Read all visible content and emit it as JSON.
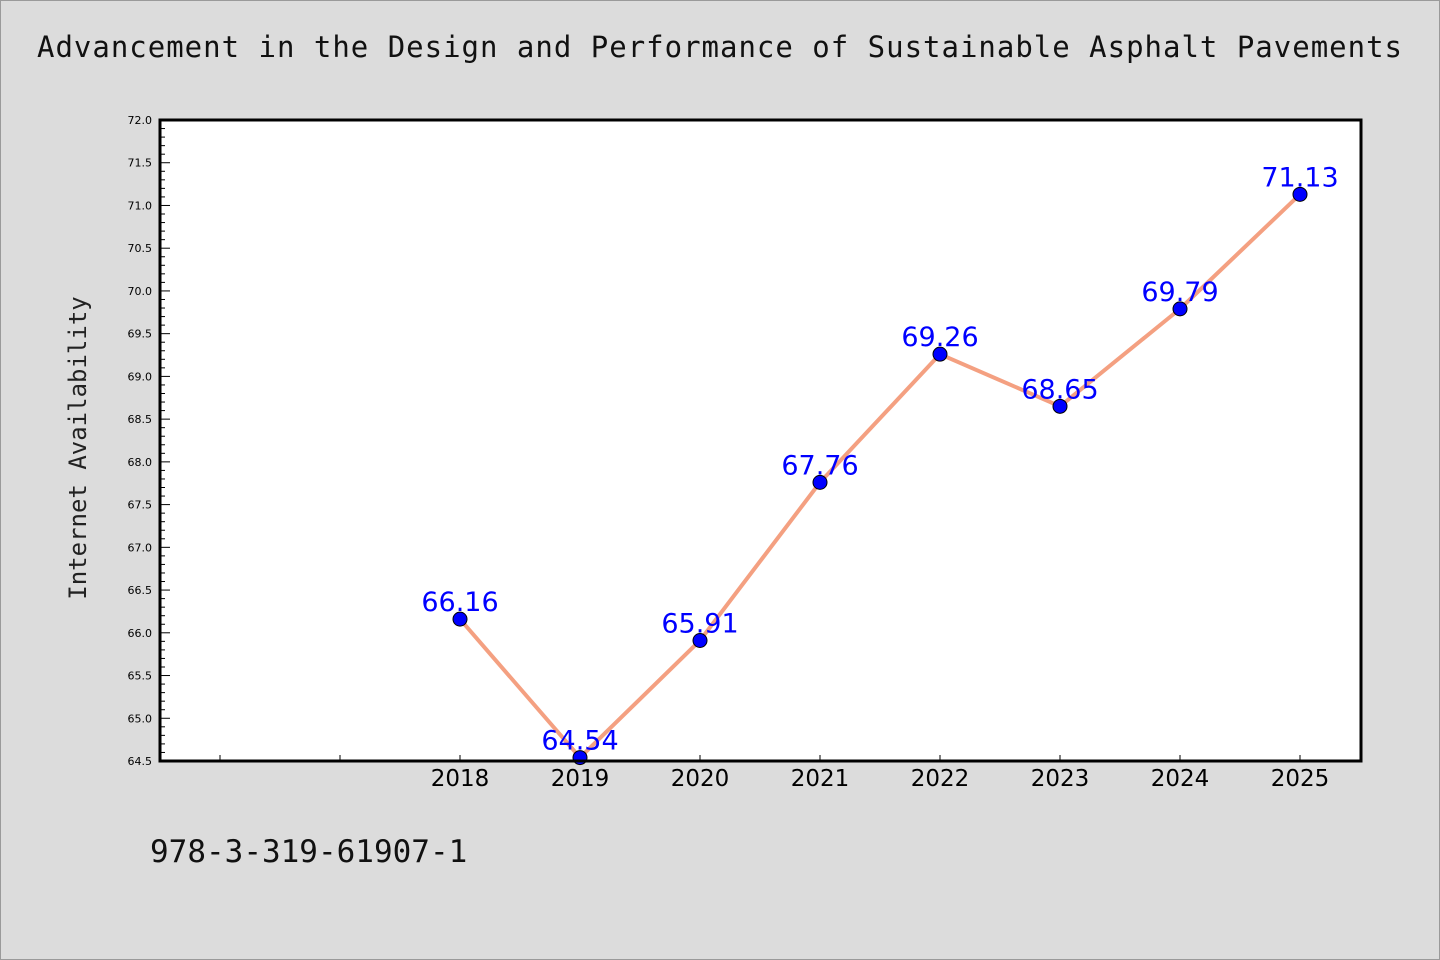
{
  "title": "Advancement in the Design and Performance of Sustainable Asphalt Pavements",
  "footer_text": "978-3-319-61907-1",
  "colors": {
    "background": "#dcdcdc",
    "line": "#f4a081",
    "marker": "#0000ff",
    "label": "#0000ff",
    "plot_bg": "#ffffff",
    "axis": "#000000"
  },
  "chart_data": {
    "type": "line",
    "title": "Advancement in the Design and Performance of Sustainable Asphalt Pavements",
    "xlabel": "",
    "ylabel": "Internet Availability",
    "categories": [
      "2018",
      "2019",
      "2020",
      "2021",
      "2022",
      "2023",
      "2024",
      "2025"
    ],
    "series": [
      {
        "values": [
          66.16,
          64.54,
          65.91,
          67.76,
          69.26,
          68.65,
          69.79,
          71.13
        ]
      }
    ],
    "data_labels": [
      "66.16",
      "64.54",
      "65.91",
      "67.76",
      "69.26",
      "68.65",
      "69.79",
      "71.13"
    ],
    "ylim": [
      64.5,
      72.0
    ],
    "y_ticks": [
      "64.5",
      "65.0",
      "65.5",
      "66.0",
      "66.5",
      "67.0",
      "67.5",
      "68.0",
      "68.5",
      "69.0",
      "69.5",
      "70.0",
      "70.5",
      "71.0",
      "71.5",
      "72.0"
    ],
    "x_leading_empty_slots": 2,
    "grid": false,
    "legend": "none"
  }
}
